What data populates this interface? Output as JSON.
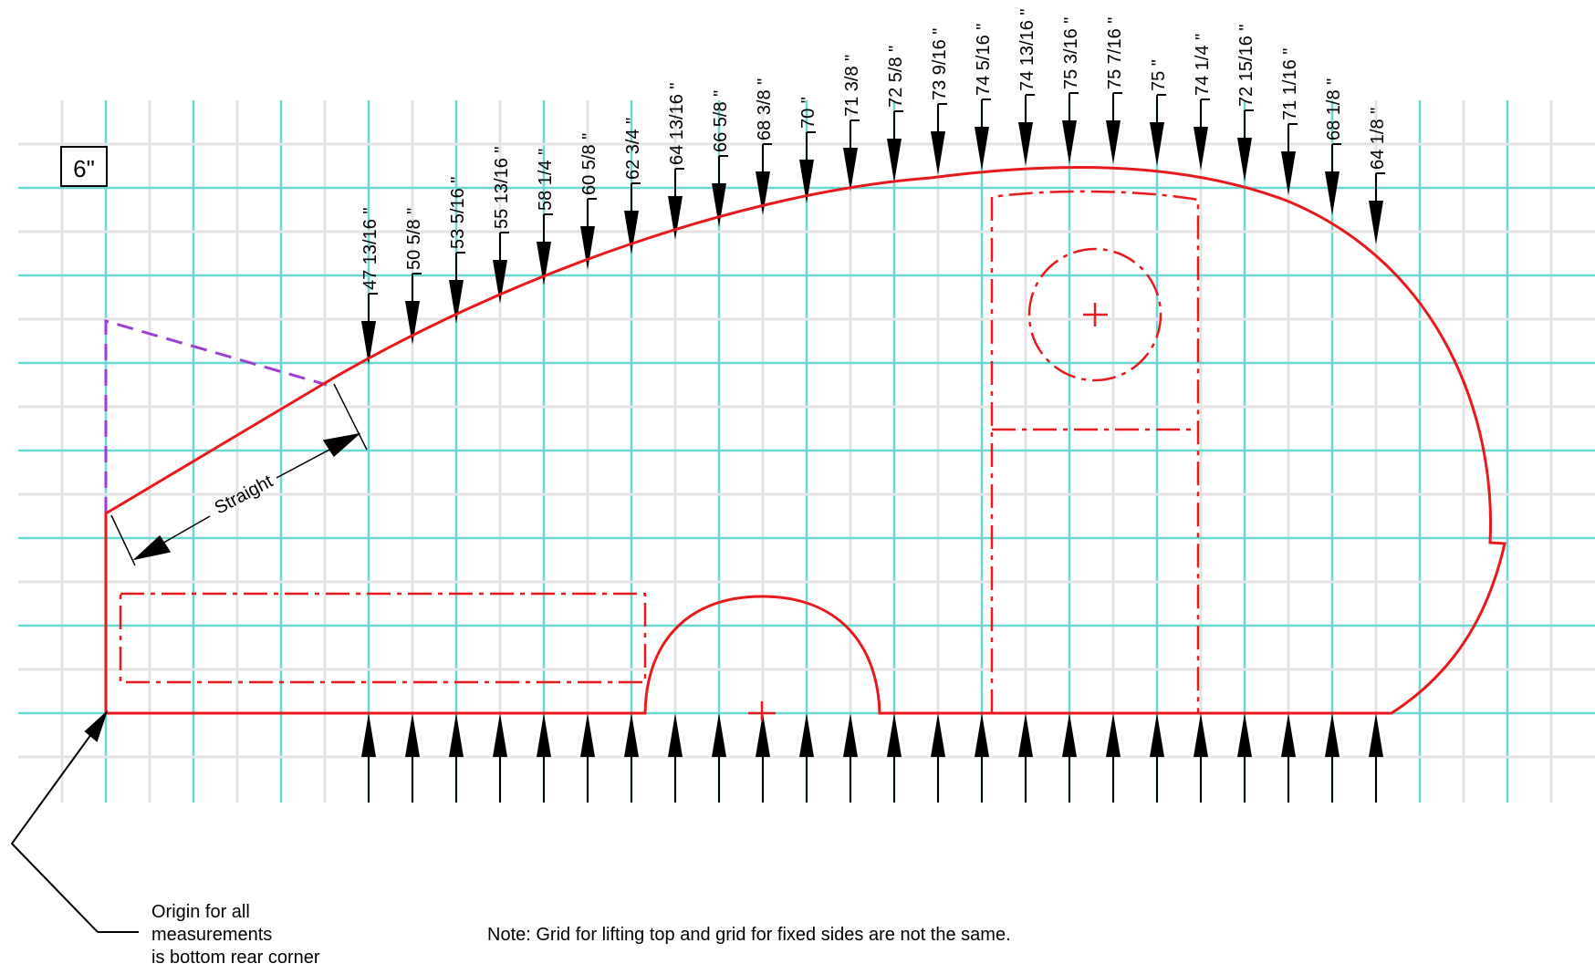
{
  "scale_label": "6\"",
  "straight_label": "Straight",
  "origin_note": [
    "Origin for all",
    "measurements",
    "is bottom rear corner"
  ],
  "grid_note": "Note: Grid for lifting top and grid for fixed sides are not the same.",
  "measurements": [
    "47 13/16 \"",
    "50 5/8 \"",
    "53 5/16 \"",
    "55 13/16 \"",
    "58 1/4 \"",
    "60 5/8 \"",
    "62 3/4 \"",
    "64 13/16 \"",
    "66 5/8 \"",
    "68 3/8 \"",
    "70 \"",
    "71 3/8 \"",
    "72 5/8 \"",
    "73 9/16 \"",
    "74 5/16 \"",
    "74 13/16 \"",
    "75 3/16 \"",
    "75 7/16 \"",
    "75 \"",
    "74 1/4 \"",
    "72 15/16 \"",
    "71 1/16 \"",
    "68 1/8 \"",
    "64 1/8 \""
  ],
  "colors": {
    "profile": "#e8191c",
    "major_grid": "#6ad8d2",
    "minor_grid": "#e3e3e3",
    "dashed_guide": "#9a3fd0",
    "ink": "#000000"
  }
}
